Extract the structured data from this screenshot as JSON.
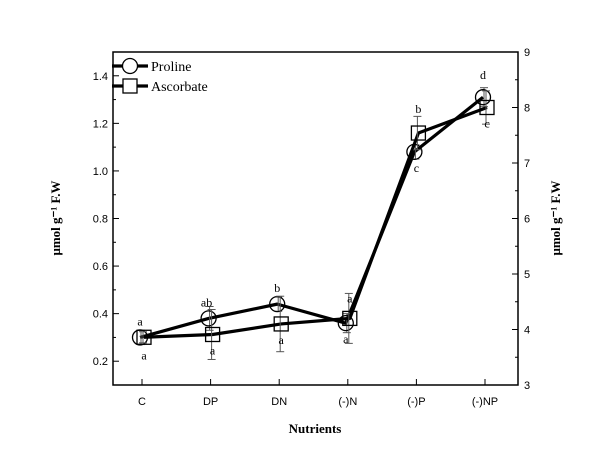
{
  "chart_data": {
    "type": "line",
    "title": "",
    "xlabel": "Nutrients",
    "ylabel_left": "μmol g⁻¹ F.W",
    "ylabel_right": "μmol g⁻¹ F.W",
    "categories": [
      "C",
      "DP",
      "DN",
      "(-)N",
      "(-)P",
      "(-)NP"
    ],
    "y_left": {
      "min": 0.1,
      "max": 1.5,
      "ticks": [
        "0.2",
        "0.4",
        "0.6",
        "0.8",
        "1.0",
        "1.2",
        "1.4"
      ]
    },
    "y_right": {
      "min": 3,
      "max": 9,
      "ticks": [
        "3",
        "4",
        "5",
        "6",
        "7",
        "8",
        "9"
      ]
    },
    "legend_position": "top-left",
    "grid": false,
    "series": [
      {
        "name": "Proline",
        "axis": "left",
        "marker": "circle",
        "values": [
          0.3,
          0.38,
          0.44,
          0.36,
          1.08,
          1.31
        ],
        "errors": [
          0.03,
          0.05,
          0.03,
          0.04,
          0.03,
          0.04
        ],
        "labels": [
          "a",
          "ab",
          "b",
          "a",
          "c",
          "d"
        ]
      },
      {
        "name": "Ascorbate",
        "axis": "right",
        "marker": "square",
        "values": [
          3.86,
          3.91,
          4.1,
          4.2,
          7.54,
          8.0
        ],
        "errors": [
          0.1,
          0.45,
          0.5,
          0.45,
          0.3,
          0.3
        ],
        "labels": [
          "a",
          "a",
          "a",
          "a",
          "b",
          "c"
        ]
      }
    ]
  }
}
